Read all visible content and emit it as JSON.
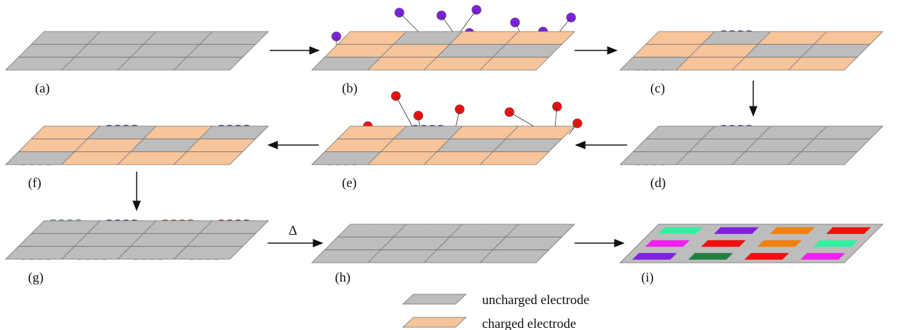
{
  "labels": [
    "(a)",
    "(b)",
    "(c)",
    "(d)",
    "(e)",
    "(f)",
    "(g)",
    "(h)",
    "(i)"
  ],
  "delta": "Δ",
  "legend": [
    "uncharged electrode",
    "charged electrode"
  ]
}
